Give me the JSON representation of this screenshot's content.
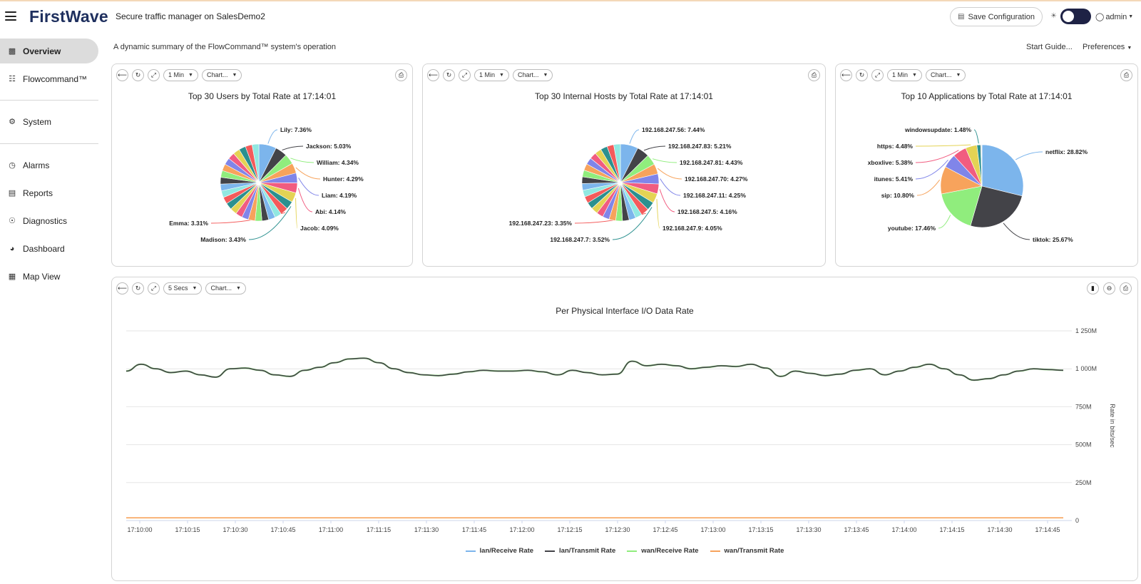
{
  "header": {
    "logo": "FirstWave",
    "title": "Secure traffic manager on SalesDemo2",
    "save_label": "Save Configuration",
    "user": "admin"
  },
  "sidebar": {
    "items": [
      {
        "label": "Overview",
        "icon": "bar-chart-icon",
        "active": true
      },
      {
        "label": "Flowcommand™",
        "icon": "sitemap-icon"
      },
      {
        "label": "System",
        "icon": "cogs-icon"
      },
      {
        "label": "Alarms",
        "icon": "clock-icon"
      },
      {
        "label": "Reports",
        "icon": "report-icon"
      },
      {
        "label": "Diagnostics",
        "icon": "lifebuoy-icon"
      },
      {
        "label": "Dashboard",
        "icon": "gauge-icon"
      },
      {
        "label": "Map View",
        "icon": "map-icon"
      }
    ]
  },
  "subheader": {
    "summary": "A dynamic summary of the FlowCommand™ system's operation",
    "start_guide": "Start Guide...",
    "preferences": "Preferences"
  },
  "panels": [
    {
      "interval": "1 Min",
      "chart": "Chart..."
    },
    {
      "interval": "1 Min",
      "chart": "Chart..."
    },
    {
      "interval": "1 Min",
      "chart": "Chart..."
    },
    {
      "interval": "5 Secs",
      "chart": "Chart..."
    }
  ],
  "colors": {
    "palette": [
      "#7cb5ec",
      "#434348",
      "#90ed7d",
      "#f7a35c",
      "#8085e9",
      "#f15c80",
      "#e4d354",
      "#2b908f",
      "#f45b5b",
      "#91e8e1"
    ],
    "lan_receive": "#7cb5ec",
    "lan_transmit": "#434348",
    "wan_receive": "#90ed7d",
    "wan_transmit": "#f7a35c"
  },
  "chart_data": [
    {
      "type": "pie",
      "title": "Top 30 Users by Total Rate at 17:14:01",
      "labeled": [
        {
          "name": "Lily",
          "value": 7.36,
          "label": "Lily: 7.36%"
        },
        {
          "name": "Jackson",
          "value": 5.03,
          "label": "Jackson: 5.03%"
        },
        {
          "name": "William",
          "value": 4.34,
          "label": "William: 4.34%"
        },
        {
          "name": "Hunter",
          "value": 4.29,
          "label": "Hunter: 4.29%"
        },
        {
          "name": "Liam",
          "value": 4.19,
          "label": "Liam: 4.19%"
        },
        {
          "name": "Abi",
          "value": 4.14,
          "label": "Abi: 4.14%"
        },
        {
          "name": "Jacob",
          "value": 4.09,
          "label": "Jacob: 4.09%"
        },
        {
          "name": "Madison",
          "value": 3.43,
          "label": "Madison: 3.43%"
        },
        {
          "name": "Emma",
          "value": 3.31,
          "label": "Emma: 3.31%"
        }
      ],
      "other_slices": 21
    },
    {
      "type": "pie",
      "title": "Top 30 Internal Hosts by Total Rate at 17:14:01",
      "labeled": [
        {
          "name": "192.168.247.56",
          "value": 7.44,
          "label": "192.168.247.56: 7.44%"
        },
        {
          "name": "192.168.247.83",
          "value": 5.21,
          "label": "192.168.247.83: 5.21%"
        },
        {
          "name": "192.168.247.81",
          "value": 4.43,
          "label": "192.168.247.81: 4.43%"
        },
        {
          "name": "192.168.247.70",
          "value": 4.27,
          "label": "192.168.247.70: 4.27%"
        },
        {
          "name": "192.168.247.11",
          "value": 4.25,
          "label": "192.168.247.11: 4.25%"
        },
        {
          "name": "192.168.247.5",
          "value": 4.16,
          "label": "192.168.247.5: 4.16%"
        },
        {
          "name": "192.168.247.9",
          "value": 4.05,
          "label": "192.168.247.9: 4.05%"
        },
        {
          "name": "192.168.247.7",
          "value": 3.52,
          "label": "192.168.247.7: 3.52%"
        },
        {
          "name": "192.168.247.23",
          "value": 3.35,
          "label": "192.168.247.23: 3.35%"
        }
      ],
      "other_slices": 21
    },
    {
      "type": "pie",
      "title": "Top 10 Applications by Total Rate at 17:14:01",
      "labeled": [
        {
          "name": "netflix",
          "value": 28.82,
          "label": "netflix: 28.82%"
        },
        {
          "name": "tiktok",
          "value": 25.67,
          "label": "tiktok: 25.67%"
        },
        {
          "name": "youtube",
          "value": 17.46,
          "label": "youtube: 17.46%"
        },
        {
          "name": "sip",
          "value": 10.8,
          "label": "sip: 10.80%"
        },
        {
          "name": "itunes",
          "value": 5.41,
          "label": "itunes: 5.41%"
        },
        {
          "name": "xboxlive",
          "value": 5.38,
          "label": "xboxlive: 5.38%"
        },
        {
          "name": "https",
          "value": 4.48,
          "label": "https: 4.48%"
        },
        {
          "name": "windowsupdate",
          "value": 1.48,
          "label": "windowsupdate: 1.48%"
        }
      ],
      "other_slices": 2
    },
    {
      "type": "line",
      "title": "Per Physical Interface I/O Data Rate",
      "ylabel": "Rate in bits/sec",
      "yticks": [
        "0",
        "250M",
        "500M",
        "750M",
        "1 000M",
        "1 250M"
      ],
      "ylim": [
        0,
        1250
      ],
      "xticks": [
        "17:10:00",
        "17:10:15",
        "17:10:30",
        "17:10:45",
        "17:11:00",
        "17:11:15",
        "17:11:30",
        "17:11:45",
        "17:12:00",
        "17:12:15",
        "17:12:30",
        "17:12:45",
        "17:13:00",
        "17:13:15",
        "17:13:30",
        "17:13:45",
        "17:14:00",
        "17:14:15",
        "17:14:30",
        "17:14:45"
      ],
      "series": [
        {
          "name": "lan/Receive Rate",
          "values": [
            985,
            1030,
            1000,
            975,
            985,
            960,
            945,
            1000,
            1005,
            990,
            960,
            950,
            990,
            1010,
            1040,
            1065,
            1070,
            1040,
            1000,
            975,
            960,
            955,
            965,
            980,
            990,
            985,
            985,
            990,
            980,
            960,
            990,
            975,
            960,
            965,
            1050,
            1020,
            1030,
            1020,
            1000,
            1010,
            1020,
            1015,
            1030,
            1005,
            950,
            985,
            970,
            955,
            965,
            990,
            1000,
            960,
            985,
            1010,
            1030,
            1000,
            960,
            925,
            935,
            960,
            985,
            1000,
            995,
            990
          ]
        },
        {
          "name": "lan/Transmit Rate",
          "values": [
            985,
            1030,
            1000,
            975,
            985,
            960,
            945,
            1000,
            1005,
            990,
            960,
            950,
            990,
            1010,
            1040,
            1065,
            1070,
            1040,
            1000,
            975,
            960,
            955,
            965,
            980,
            990,
            985,
            985,
            990,
            980,
            960,
            990,
            975,
            960,
            965,
            1050,
            1020,
            1030,
            1020,
            1000,
            1010,
            1020,
            1015,
            1030,
            1005,
            950,
            985,
            970,
            955,
            965,
            990,
            1000,
            960,
            985,
            1010,
            1030,
            1000,
            960,
            925,
            935,
            960,
            985,
            1000,
            995,
            990
          ]
        },
        {
          "name": "wan/Receive Rate",
          "values": [
            985,
            1030,
            1000,
            975,
            985,
            960,
            945,
            1000,
            1005,
            990,
            960,
            950,
            990,
            1010,
            1040,
            1065,
            1070,
            1040,
            1000,
            975,
            960,
            955,
            965,
            980,
            990,
            985,
            985,
            990,
            980,
            960,
            990,
            975,
            960,
            965,
            1050,
            1020,
            1030,
            1020,
            1000,
            1010,
            1020,
            1015,
            1030,
            1005,
            950,
            985,
            970,
            955,
            965,
            990,
            1000,
            960,
            985,
            1010,
            1030,
            1000,
            960,
            925,
            935,
            960,
            985,
            1000,
            995,
            990
          ]
        },
        {
          "name": "wan/Transmit Rate",
          "values": [
            18,
            18,
            18,
            18,
            18,
            18,
            18,
            18,
            18,
            18,
            18,
            18,
            18,
            18,
            18,
            18,
            18,
            18,
            18,
            18,
            18,
            18,
            18,
            18,
            18,
            18,
            18,
            18,
            18,
            18,
            18,
            18,
            18,
            18,
            18,
            18,
            18,
            18,
            18,
            18,
            18,
            18,
            18,
            18,
            18,
            18,
            18,
            18,
            18,
            18,
            18,
            18,
            18,
            18,
            18,
            18,
            18,
            18,
            18,
            18,
            18,
            18,
            18,
            18
          ]
        }
      ]
    }
  ]
}
